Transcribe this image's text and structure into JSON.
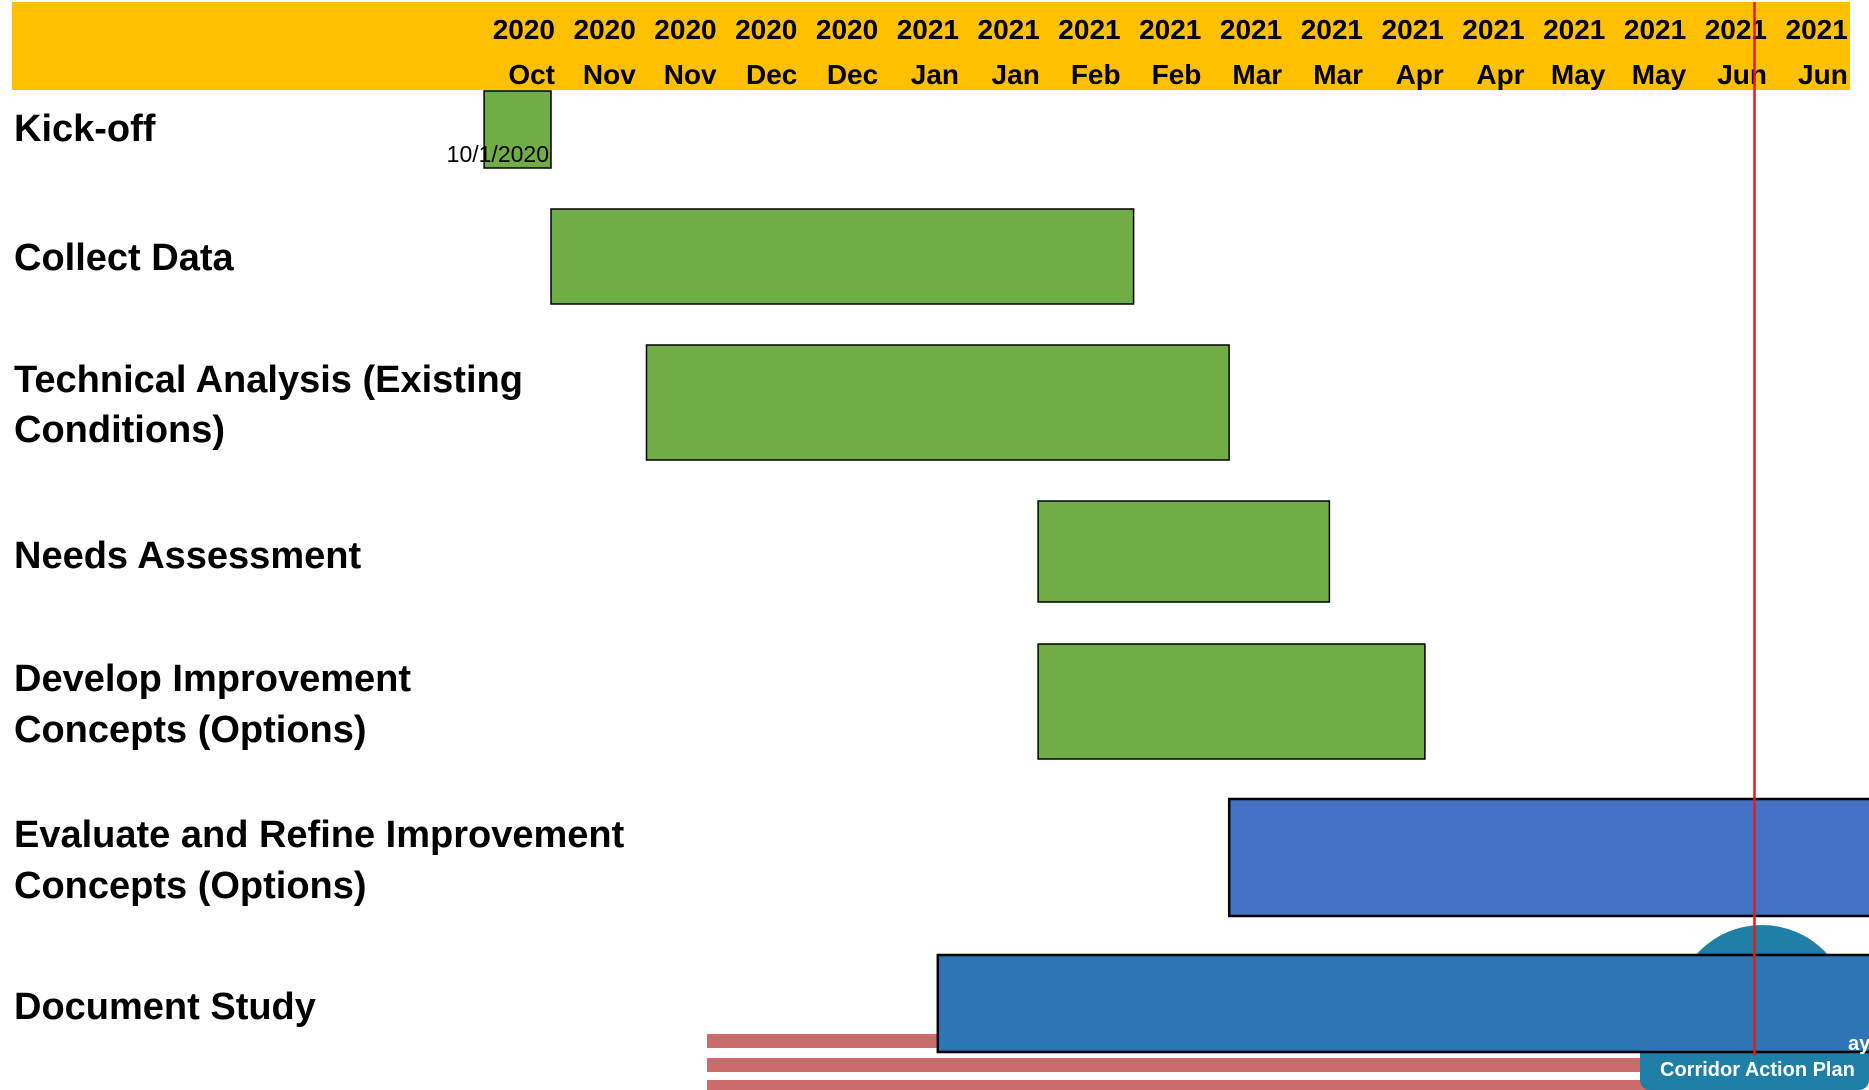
{
  "chart_data": {
    "type": "gantt",
    "title": "",
    "colors": {
      "header_band": "#ffc000",
      "current_date_line": "#e21b1b",
      "completed": "#70ad47",
      "in_progress": "#4472c4",
      "ongoing": "#2e75b6",
      "bar_border": "#000000",
      "stripe": "#cc6b6b",
      "logo": "#1f7fa6"
    },
    "x_axis": {
      "range": [
        "2020-10-01",
        "2021-06-30"
      ],
      "ticks": [
        {
          "year": "2020",
          "month": "Oct"
        },
        {
          "year": "2020",
          "month": "Nov"
        },
        {
          "year": "2020",
          "month": "Nov"
        },
        {
          "year": "2020",
          "month": "Dec"
        },
        {
          "year": "2020",
          "month": "Dec"
        },
        {
          "year": "2021",
          "month": "Jan"
        },
        {
          "year": "2021",
          "month": "Jan"
        },
        {
          "year": "2021",
          "month": "Feb"
        },
        {
          "year": "2021",
          "month": "Feb"
        },
        {
          "year": "2021",
          "month": "Mar"
        },
        {
          "year": "2021",
          "month": "Mar"
        },
        {
          "year": "2021",
          "month": "Apr"
        },
        {
          "year": "2021",
          "month": "Apr"
        },
        {
          "year": "2021",
          "month": "May"
        },
        {
          "year": "2021",
          "month": "May"
        },
        {
          "year": "2021",
          "month": "Jun"
        },
        {
          "year": "2021",
          "month": "Jun"
        }
      ]
    },
    "current_date": "2021-06-10",
    "tasks": [
      {
        "name": "Kick-off",
        "label_lines": [
          "Kick-off"
        ],
        "start": "2020-09-17",
        "end": "2020-10-01",
        "color": "completed",
        "bar_label": "10/1/2020"
      },
      {
        "name": "Collect Data",
        "label_lines": [
          "Collect Data"
        ],
        "start": "2020-10-01",
        "end": "2021-01-31",
        "color": "completed"
      },
      {
        "name": "Technical Analysis (Existing Conditions)",
        "label_lines": [
          "Technical Analysis (Existing",
          "Conditions)"
        ],
        "start": "2020-10-21",
        "end": "2021-02-20",
        "color": "completed"
      },
      {
        "name": "Needs Assessment",
        "label_lines": [
          "Needs Assessment"
        ],
        "start": "2021-01-11",
        "end": "2021-03-13",
        "color": "completed"
      },
      {
        "name": "Develop Improvement Concepts (Options)",
        "label_lines": [
          "Develop Improvement",
          "Concepts (Options)"
        ],
        "start": "2021-01-11",
        "end": "2021-04-02",
        "color": "completed"
      },
      {
        "name": "Evaluate and Refine Improvement Concepts (Options)",
        "label_lines": [
          "Evaluate and Refine Improvement",
          "Concepts (Options)"
        ],
        "start": "2021-02-20",
        "end": "2021-07-12",
        "color": "in_progress"
      },
      {
        "name": "Document Study",
        "label_lines": [
          "Document Study"
        ],
        "start": "2020-12-21",
        "end": "2021-08-21",
        "color": "ongoing"
      }
    ]
  },
  "logo": {
    "text": "Corridor Action Plan",
    "partial_text": "ay"
  }
}
